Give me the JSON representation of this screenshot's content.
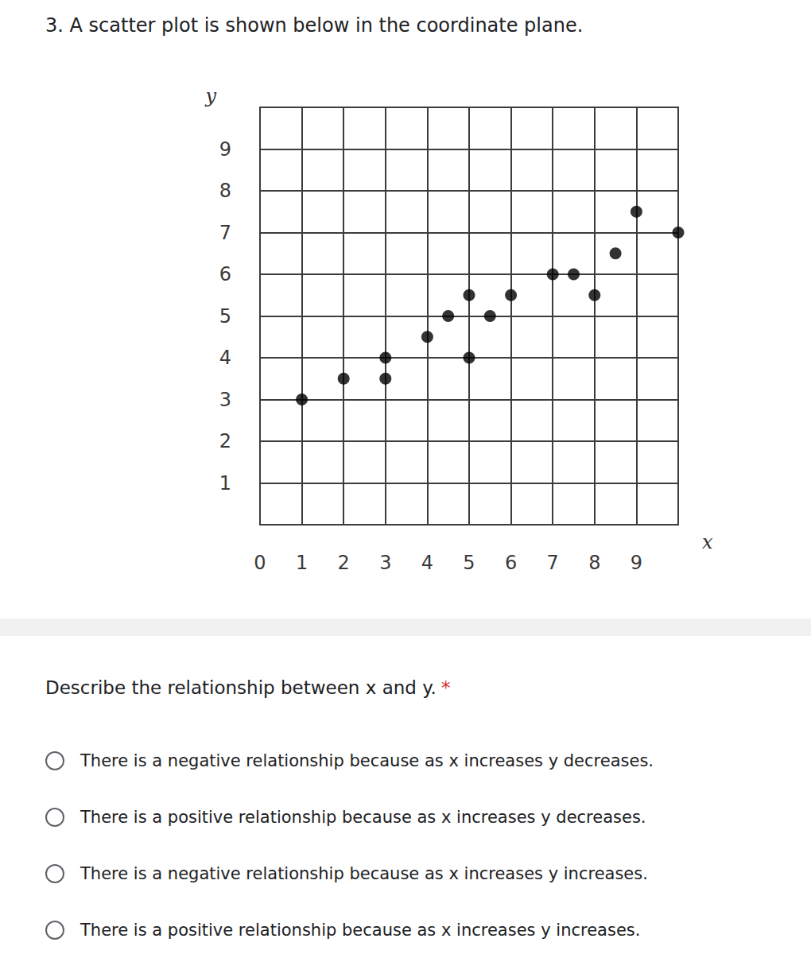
{
  "question": "3. A scatter plot is shown below in the coordinate plane.",
  "chart_data": {
    "type": "scatter",
    "x_label": "x",
    "y_label": "y",
    "x": [
      1,
      2,
      3,
      3,
      4,
      4.5,
      5,
      5,
      5.5,
      6,
      7,
      7.5,
      8,
      8.5,
      9,
      10
    ],
    "values": [
      3,
      3.5,
      4,
      3.5,
      4.5,
      5,
      5.5,
      4,
      5,
      5.5,
      6,
      6,
      5.5,
      6.5,
      7.5,
      7
    ],
    "color": "#000000",
    "marker": "circle",
    "xlim": [
      0,
      10
    ],
    "xticks": [
      0,
      1,
      2,
      3,
      4,
      5,
      6,
      7,
      8,
      9
    ],
    "ylim": [
      0,
      10
    ],
    "yticks": [
      1,
      2,
      3,
      4,
      5,
      6,
      7,
      8,
      9
    ],
    "grid": true
  },
  "prompt": "Describe the relationship between x and y.",
  "required_mark": "*",
  "options": [
    "There is a negative relationship because as x increases y decreases.",
    "There is a positive relationship because as x increases y decreases.",
    "There is a negative relationship because as x increases y increases.",
    "There is a positive relationship because as x increases y increases."
  ]
}
